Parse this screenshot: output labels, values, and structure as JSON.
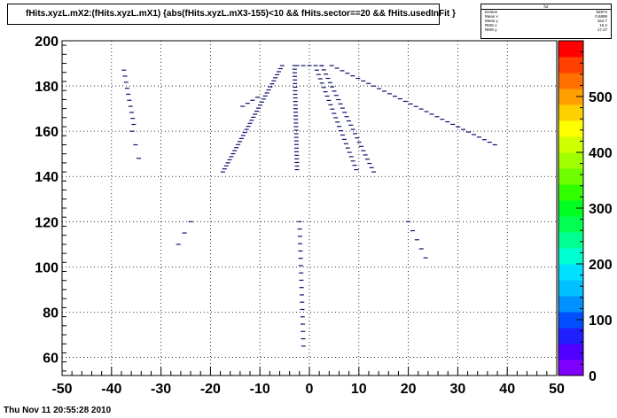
{
  "title": "fHits.xyzL.mX2:(fHits.xyzL.mX1) {abs(fHits.xyzL.mX3-155)<10 && fHits.sector==20 && fHits.usedInFit  }",
  "stats": {
    "name": "h2",
    "rows": [
      {
        "label": "Entries",
        "value": "92974"
      },
      {
        "label": "Mean x",
        "value": "0.6898"
      },
      {
        "label": "Mean y",
        "value": "164.7"
      },
      {
        "label": "RMS x",
        "value": "15.2"
      },
      {
        "label": "RMS y",
        "value": "17.27"
      }
    ]
  },
  "timestamp": "Thu Nov 11 20:55:28 2010",
  "colors": {
    "palette": [
      "#8000ff",
      "#5000ff",
      "#2020ff",
      "#0050ff",
      "#0090ff",
      "#00c0ff",
      "#00e0ff",
      "#00ffd0",
      "#00ff90",
      "#00ff50",
      "#00ff20",
      "#30ff00",
      "#70ff00",
      "#a0ff00",
      "#d0ff00",
      "#ffff00",
      "#ffd000",
      "#ffa000",
      "#ff7000",
      "#ff4000",
      "#ff0000"
    ],
    "hit": "#101070"
  },
  "chart_data": {
    "type": "heatmap",
    "xlim": [
      -50,
      50
    ],
    "ylim": [
      52,
      200
    ],
    "zlim": [
      0,
      600
    ],
    "grid": true,
    "x_ticks": [
      -50,
      -40,
      -30,
      -20,
      -10,
      0,
      10,
      20,
      30,
      40,
      50
    ],
    "y_ticks": [
      60,
      80,
      100,
      120,
      140,
      160,
      180,
      200
    ],
    "z_ticks": [
      0,
      100,
      200,
      300,
      400,
      500
    ],
    "segments": [
      {
        "from": [
          -37.5,
          187
        ],
        "to": [
          -35.5,
          163
        ],
        "n": 10
      },
      {
        "from": [
          -35.8,
          160
        ],
        "to": [
          -34.5,
          148
        ],
        "n": 3
      },
      {
        "from": [
          -17.5,
          142
        ],
        "to": [
          -5.5,
          189
        ],
        "n": 36
      },
      {
        "from": [
          -13.5,
          171
        ],
        "to": [
          -10.5,
          175
        ],
        "n": 4
      },
      {
        "from": [
          -3,
          189
        ],
        "to": [
          -2.5,
          143
        ],
        "n": 30
      },
      {
        "from": [
          -2.5,
          189
        ],
        "to": [
          2.5,
          189
        ],
        "n": 5
      },
      {
        "from": [
          1.5,
          187
        ],
        "to": [
          9.5,
          143
        ],
        "n": 24
      },
      {
        "from": [
          2.5,
          189
        ],
        "to": [
          13,
          142
        ],
        "n": 26
      },
      {
        "from": [
          4.5,
          189
        ],
        "to": [
          37.5,
          154
        ],
        "n": 32
      },
      {
        "from": [
          -26.5,
          110
        ],
        "to": [
          -24,
          120
        ],
        "n": 3
      },
      {
        "from": [
          -2,
          120
        ],
        "to": [
          -1.2,
          65
        ],
        "n": 18
      },
      {
        "from": [
          20,
          120
        ],
        "to": [
          23.5,
          104
        ],
        "n": 5
      }
    ]
  }
}
